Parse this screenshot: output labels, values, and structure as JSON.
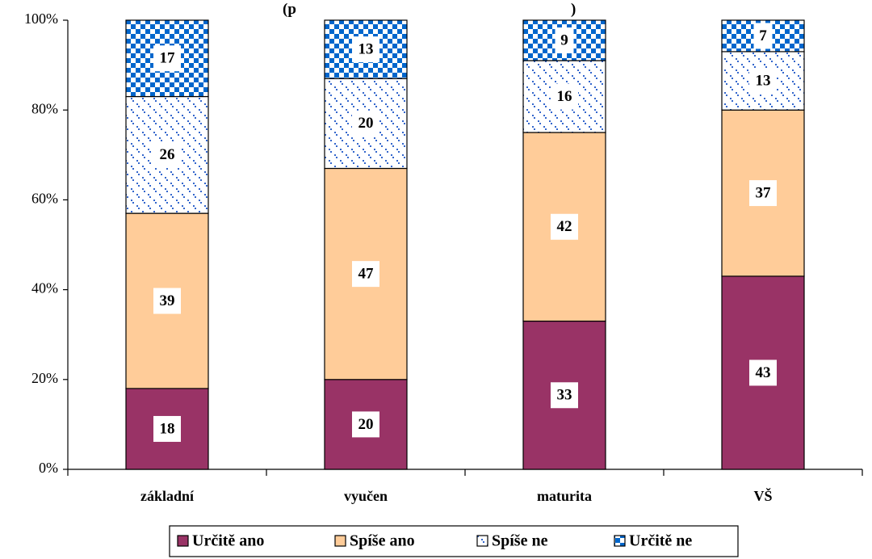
{
  "chart_data": {
    "type": "bar",
    "stacked": true,
    "title": "(p",
    "title_suffix": ")",
    "categories": [
      "základní",
      "vyučen",
      "maturita",
      "VŠ"
    ],
    "series": [
      {
        "name": "Určitě ano",
        "values": [
          18,
          20,
          33,
          43
        ],
        "color": "#993366",
        "pattern": "solid"
      },
      {
        "name": "Spíše ano",
        "values": [
          39,
          47,
          42,
          37
        ],
        "color": "#FFCC99",
        "pattern": "solid"
      },
      {
        "name": "Spíše ne",
        "values": [
          26,
          20,
          16,
          13
        ],
        "color": "#3366CC",
        "pattern": "dotted"
      },
      {
        "name": "Určitě ne",
        "values": [
          17,
          13,
          9,
          7
        ],
        "color": "#0066CC",
        "pattern": "checker"
      }
    ],
    "yticks": [
      "0%",
      "20%",
      "40%",
      "60%",
      "80%",
      "100%"
    ],
    "ylim": [
      0,
      100
    ],
    "legend_position": "bottom",
    "grid": false
  }
}
